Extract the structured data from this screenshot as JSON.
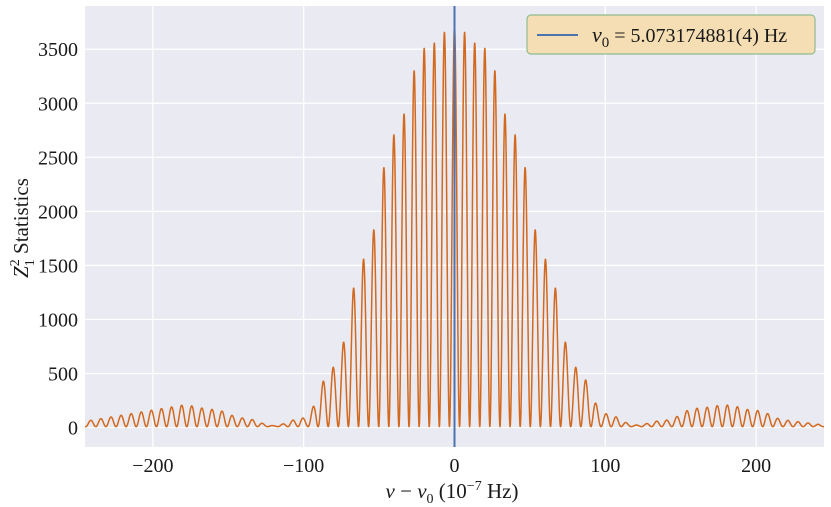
{
  "colors": {
    "plot_bg": "#EAEAF2",
    "grid": "#FFFFFF",
    "curve": "#D2691E",
    "marker_line": "#4C72B0",
    "legend_bg": "#F5DEB3",
    "legend_border": "#8FBC8F"
  },
  "chart_data": {
    "type": "line",
    "title": "",
    "xlabel": "ν − ν0 (10−7 Hz)",
    "ylabel": "Z12 Statistics",
    "xlim": [
      -245,
      245
    ],
    "ylim": [
      -180,
      3900
    ],
    "grid": true,
    "x_ticks": [
      -200,
      -100,
      0,
      100,
      200
    ],
    "x_tick_labels": [
      "−200",
      "−100",
      "0",
      "100",
      "200"
    ],
    "y_ticks": [
      0,
      500,
      1000,
      1500,
      2000,
      2500,
      3000,
      3500
    ],
    "y_tick_labels": [
      "0",
      "500",
      "1000",
      "1500",
      "2000",
      "2500",
      "3000",
      "3500"
    ],
    "legend": {
      "placement": "top-right",
      "entries": [
        {
          "label": "ν0 = 5.073174881(4) Hz",
          "color": "#4C72B0"
        }
      ]
    },
    "vertical_line": {
      "x": 0,
      "label": "ν0 = 5.073174881(4) Hz"
    },
    "series": [
      {
        "name": "Z12",
        "color": "#D2691E",
        "description": "Oscillating fringe pattern: Gaussian envelope peaking ~3700 at x≈0 (half-width ~70), secondary lobes ~200 near x≈±180, fringe period ~6.7",
        "envelope_peaks": {
          "x": [
            -180,
            -160,
            -140,
            -120,
            -100,
            -80,
            -60,
            -40,
            -20,
            0,
            20,
            40,
            60,
            80,
            100,
            120,
            140,
            160,
            180,
            200,
            220
          ],
          "y": [
            200,
            160,
            80,
            10,
            80,
            550,
            1550,
            2700,
            3500,
            3700,
            3500,
            2700,
            1550,
            550,
            120,
            15,
            60,
            170,
            200,
            150,
            60
          ]
        },
        "fringe_period": 6.7
      }
    ]
  }
}
